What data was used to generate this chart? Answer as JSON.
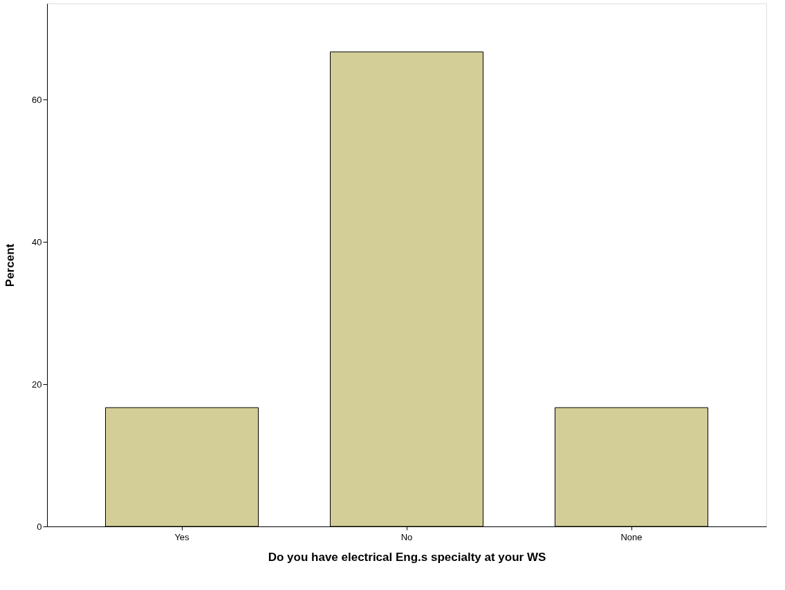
{
  "chart_data": {
    "type": "bar",
    "xlabel": "Do you have electrical Eng.s specialty at your WS",
    "ylabel": "Percent",
    "categories": [
      "Yes",
      "No",
      "None"
    ],
    "values": [
      16.7,
      66.7,
      16.7
    ],
    "color": "#d3ce97",
    "ylim": [
      0,
      73.5
    ],
    "yticks": [
      0,
      20,
      40,
      60
    ],
    "grid": false
  }
}
